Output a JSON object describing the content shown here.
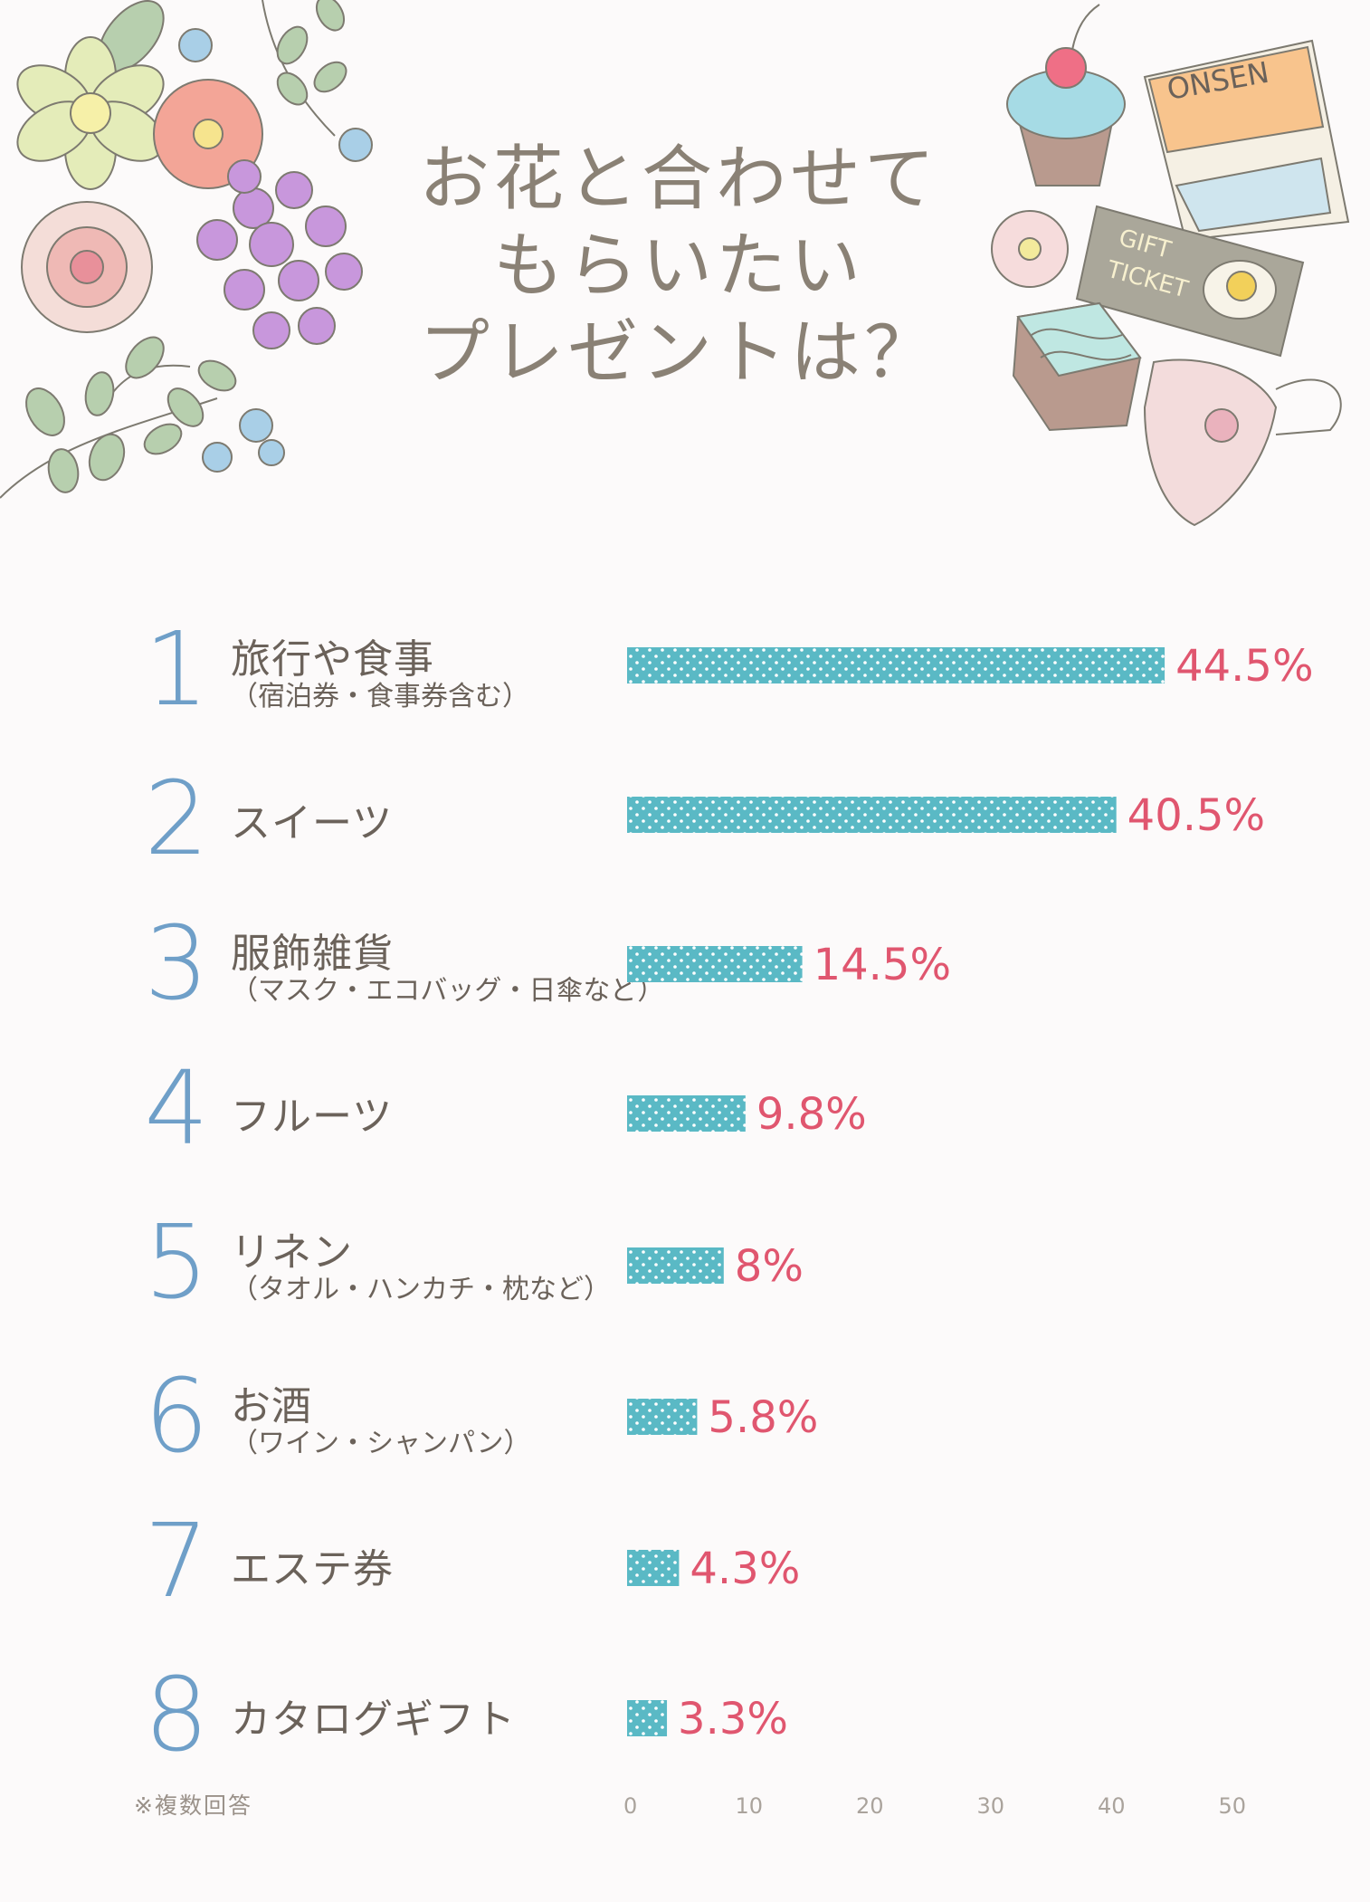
{
  "title_lines": [
    "お花と合わせて",
    "もらいたい",
    "プレゼントは？"
  ],
  "footnote": "※複数回答",
  "decor": {
    "onsen_label": "ONSEN",
    "ticket_line1": "GIFT",
    "ticket_line2": "TICKET"
  },
  "colors": {
    "bar": "#5ab9c5",
    "value_label": "#e0566f",
    "rank_number": "#6f9fc8",
    "text": "#6b625a",
    "axis_tick": "#aaa39c"
  },
  "items": [
    {
      "rank": "1",
      "label": "旅行や食事",
      "sub": "（宿泊券・食事券含む）",
      "value_label": "44.5%"
    },
    {
      "rank": "2",
      "label": "スイーツ",
      "sub": "",
      "value_label": "40.5%"
    },
    {
      "rank": "3",
      "label": "服飾雑貨",
      "sub": "（マスク・エコバッグ・日傘など）",
      "value_label": "14.5%"
    },
    {
      "rank": "4",
      "label": "フルーツ",
      "sub": "",
      "value_label": "9.8%"
    },
    {
      "rank": "5",
      "label": "リネン",
      "sub": "（タオル・ハンカチ・枕など）",
      "value_label": "8%"
    },
    {
      "rank": "6",
      "label": "お酒",
      "sub": "（ワイン・シャンパン）",
      "value_label": "5.8%"
    },
    {
      "rank": "7",
      "label": "エステ券",
      "sub": "",
      "value_label": "4.3%"
    },
    {
      "rank": "8",
      "label": "カタログギフト",
      "sub": "",
      "value_label": "3.3%"
    }
  ],
  "chart_data": {
    "type": "bar",
    "orientation": "horizontal",
    "categories": [
      "旅行や食事",
      "スイーツ",
      "服飾雑貨",
      "フルーツ",
      "リネン",
      "お酒",
      "エステ券",
      "カタログギフト"
    ],
    "values": [
      44.5,
      40.5,
      14.5,
      9.8,
      8,
      5.8,
      4.3,
      3.3
    ],
    "xlim": [
      0,
      50
    ],
    "x_ticks": [
      "0",
      "10",
      "20",
      "30",
      "40",
      "50"
    ],
    "grid": false
  }
}
